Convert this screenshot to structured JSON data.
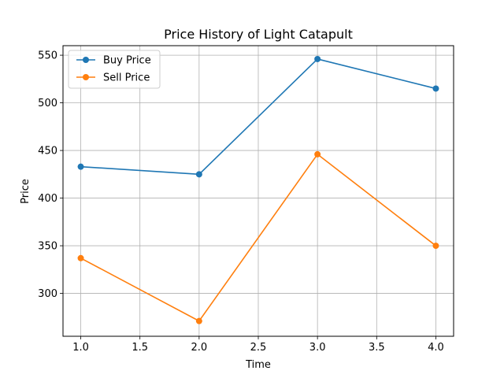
{
  "chart_data": {
    "type": "line",
    "title": "Price History of Light Catapult",
    "xlabel": "Time",
    "ylabel": "Price",
    "x": [
      1.0,
      2.0,
      3.0,
      4.0
    ],
    "xlim": [
      0.85,
      4.15
    ],
    "ylim": [
      255,
      560
    ],
    "xticks": [
      1.0,
      1.5,
      2.0,
      2.5,
      3.0,
      3.5,
      4.0
    ],
    "xtick_labels": [
      "1.0",
      "1.5",
      "2.0",
      "2.5",
      "3.0",
      "3.5",
      "4.0"
    ],
    "yticks": [
      300,
      350,
      400,
      450,
      500,
      550
    ],
    "ytick_labels": [
      "300",
      "350",
      "400",
      "450",
      "500",
      "550"
    ],
    "grid": true,
    "legend_position": "top-left",
    "series": [
      {
        "name": "Buy Price",
        "color": "#1f77b4",
        "marker": "circle",
        "values": [
          433,
          425,
          546,
          515
        ]
      },
      {
        "name": "Sell Price",
        "color": "#ff7f0e",
        "marker": "circle",
        "values": [
          337,
          271,
          446,
          350
        ]
      }
    ]
  }
}
